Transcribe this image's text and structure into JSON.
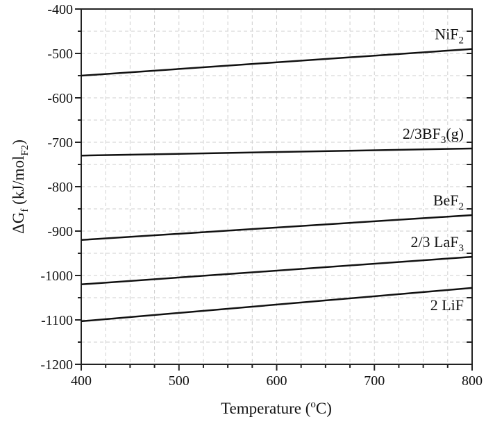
{
  "chart_data": {
    "type": "line",
    "title": "",
    "xlabel": "Temperature (oC)",
    "xlabel_parts": {
      "main": "Temperature (",
      "sup": "o",
      "tail": "C)"
    },
    "ylabel": "ΔGf (kJ/molF2)",
    "ylabel_parts": {
      "delta": "ΔG",
      "sub1": "f",
      "mid": " (kJ/mol",
      "sub2": "F2",
      "tail": ")"
    },
    "xlim": [
      400,
      800
    ],
    "ylim": [
      -1200,
      -400
    ],
    "x_ticks": [
      400,
      500,
      600,
      700,
      800
    ],
    "y_ticks": [
      -400,
      -500,
      -600,
      -700,
      -800,
      -900,
      -1000,
      -1100,
      -1200
    ],
    "grid": true,
    "legend": "inline labels at right",
    "x": [
      400,
      800
    ],
    "series": [
      {
        "name": "NiF2",
        "label_main": "NiF",
        "label_sub": "2",
        "label_tail": "",
        "values": [
          -550,
          -490
        ]
      },
      {
        "name": "2/3BF3(g)",
        "label_main": "2/3BF",
        "label_sub": "3",
        "label_tail": "(g)",
        "values": [
          -730,
          -714
        ]
      },
      {
        "name": "BeF2",
        "label_main": "BeF",
        "label_sub": "2",
        "label_tail": "",
        "values": [
          -920,
          -864
        ]
      },
      {
        "name": "2/3 LaF3",
        "label_main": "2/3 LaF",
        "label_sub": "3",
        "label_tail": "",
        "values": [
          -1020,
          -958
        ]
      },
      {
        "name": "2 LiF",
        "label_main": "2 LiF",
        "label_sub": "",
        "label_tail": "",
        "values": [
          -1103,
          -1028
        ]
      }
    ]
  }
}
